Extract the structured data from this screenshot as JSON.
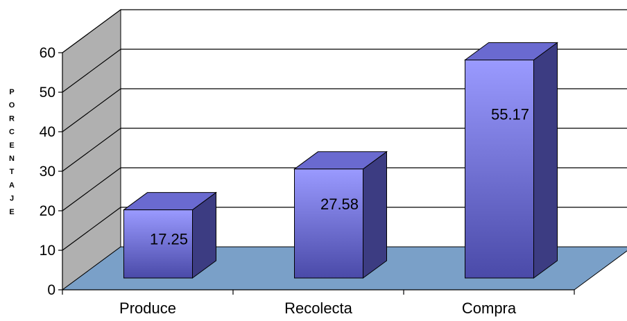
{
  "chart_data": {
    "type": "bar",
    "categories": [
      "Produce",
      "Recolecta",
      "Compra"
    ],
    "values": [
      17.25,
      27.58,
      55.17
    ],
    "data_labels": [
      "17.25",
      "27.58",
      "55.17"
    ],
    "ylabel": "PORCENTAJE",
    "ylim": [
      0,
      60
    ],
    "yticks": [
      "0",
      "10",
      "20",
      "30",
      "40",
      "50",
      "60"
    ],
    "grid": true,
    "legend": "none",
    "three_d": true,
    "colors": {
      "bar_front_top": "#9a9aff",
      "bar_front_bottom": "#4a4aa8",
      "bar_top": "#6a6ad0",
      "bar_side": "#3c3c82",
      "floor": "#7aa0c8",
      "back_wall": "#ffffff",
      "side_wall": "#b0b0b0",
      "grid": "#000000"
    }
  }
}
